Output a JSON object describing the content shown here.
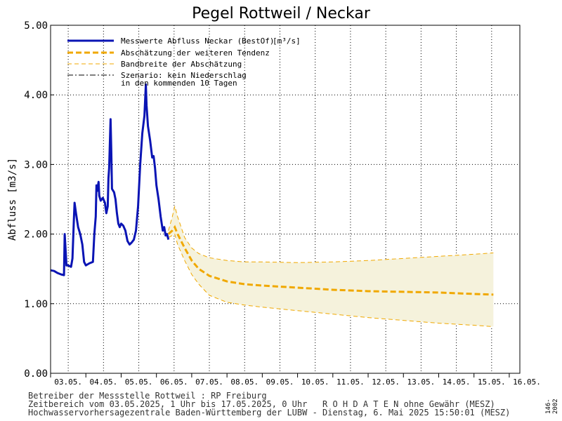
{
  "chart_data": {
    "type": "line",
    "title": "Pegel Rottweil / Neckar",
    "ylabel": "Abfluss [m3/s]",
    "ylim": [
      0,
      5
    ],
    "yticks": [
      "0.00",
      "1.00",
      "2.00",
      "3.00",
      "4.00",
      "5.00"
    ],
    "x_categories": [
      "03.05.",
      "04.05.",
      "05.05.",
      "06.05.",
      "07.05.",
      "08.05.",
      "09.05.",
      "10.05.",
      "11.05.",
      "12.05.",
      "13.05.",
      "14.05.",
      "15.05.",
      "16.05."
    ],
    "xlim_days": [
      0,
      13.3
    ],
    "grid": true,
    "legend_position": "top-left",
    "legend": [
      {
        "label": "Messwerte Abfluss Neckar (BestOf)",
        "unit": "[m³/s]",
        "style": "solid-blue"
      },
      {
        "label": "Abschätzung der weiteren Tendenz",
        "style": "dashed-orange-thick"
      },
      {
        "label": "Bandbreite der Abschätzung",
        "style": "dashed-orange-thin"
      },
      {
        "label": "Szenario: kein Niederschlag",
        "label2": "in den kommenden 10 Tagen",
        "style": "dashdot-black"
      }
    ],
    "series": [
      {
        "name": "Messwerte Abfluss Neckar (BestOf)",
        "color": "#0a14b4",
        "points": [
          [
            0.0,
            1.48
          ],
          [
            0.1,
            1.47
          ],
          [
            0.2,
            1.44
          ],
          [
            0.3,
            1.42
          ],
          [
            0.38,
            1.41
          ],
          [
            0.4,
            2.0
          ],
          [
            0.45,
            1.55
          ],
          [
            0.5,
            1.55
          ],
          [
            0.58,
            1.53
          ],
          [
            0.62,
            1.65
          ],
          [
            0.66,
            2.2
          ],
          [
            0.68,
            2.45
          ],
          [
            0.72,
            2.3
          ],
          [
            0.78,
            2.1
          ],
          [
            0.84,
            2.0
          ],
          [
            0.9,
            1.85
          ],
          [
            0.95,
            1.6
          ],
          [
            1.0,
            1.55
          ],
          [
            1.1,
            1.58
          ],
          [
            1.2,
            1.6
          ],
          [
            1.24,
            2.0
          ],
          [
            1.28,
            2.25
          ],
          [
            1.3,
            2.7
          ],
          [
            1.32,
            2.62
          ],
          [
            1.36,
            2.75
          ],
          [
            1.38,
            2.55
          ],
          [
            1.42,
            2.48
          ],
          [
            1.48,
            2.52
          ],
          [
            1.54,
            2.45
          ],
          [
            1.58,
            2.3
          ],
          [
            1.62,
            2.4
          ],
          [
            1.64,
            2.8
          ],
          [
            1.66,
            2.95
          ],
          [
            1.7,
            3.65
          ],
          [
            1.72,
            3.2
          ],
          [
            1.74,
            2.65
          ],
          [
            1.8,
            2.6
          ],
          [
            1.84,
            2.5
          ],
          [
            1.88,
            2.3
          ],
          [
            1.92,
            2.15
          ],
          [
            1.96,
            2.1
          ],
          [
            2.0,
            2.15
          ],
          [
            2.06,
            2.12
          ],
          [
            2.12,
            2.05
          ],
          [
            2.18,
            1.9
          ],
          [
            2.24,
            1.85
          ],
          [
            2.3,
            1.88
          ],
          [
            2.36,
            1.92
          ],
          [
            2.42,
            2.05
          ],
          [
            2.48,
            2.4
          ],
          [
            2.54,
            3.0
          ],
          [
            2.6,
            3.45
          ],
          [
            2.66,
            3.7
          ],
          [
            2.7,
            4.15
          ],
          [
            2.72,
            3.85
          ],
          [
            2.76,
            3.55
          ],
          [
            2.82,
            3.35
          ],
          [
            2.88,
            3.1
          ],
          [
            2.92,
            3.12
          ],
          [
            2.96,
            2.95
          ],
          [
            3.0,
            2.7
          ],
          [
            3.06,
            2.5
          ],
          [
            3.12,
            2.25
          ],
          [
            3.18,
            2.05
          ],
          [
            3.22,
            2.1
          ],
          [
            3.26,
            1.98
          ],
          [
            3.3,
            2.0
          ],
          [
            3.34,
            1.92
          ]
        ]
      },
      {
        "name": "Abschätzung der weiteren Tendenz",
        "color": "#f0a800",
        "points": [
          [
            3.34,
            2.0
          ],
          [
            3.45,
            2.05
          ],
          [
            3.52,
            2.1
          ],
          [
            3.6,
            2.0
          ],
          [
            3.8,
            1.8
          ],
          [
            4.0,
            1.62
          ],
          [
            4.2,
            1.5
          ],
          [
            4.5,
            1.4
          ],
          [
            5.0,
            1.32
          ],
          [
            5.5,
            1.28
          ],
          [
            6.0,
            1.26
          ],
          [
            7.0,
            1.23
          ],
          [
            8.0,
            1.2
          ],
          [
            9.0,
            1.18
          ],
          [
            10.0,
            1.17
          ],
          [
            11.0,
            1.16
          ],
          [
            12.0,
            1.14
          ],
          [
            12.55,
            1.13
          ]
        ]
      }
    ],
    "band": {
      "name": "Bandbreite der Abschätzung",
      "color": "#f0a800",
      "fill": "#f5f2dc",
      "upper": [
        [
          3.34,
          2.05
        ],
        [
          3.45,
          2.25
        ],
        [
          3.52,
          2.4
        ],
        [
          3.6,
          2.25
        ],
        [
          3.8,
          1.95
        ],
        [
          4.0,
          1.8
        ],
        [
          4.2,
          1.72
        ],
        [
          4.5,
          1.66
        ],
        [
          5.0,
          1.62
        ],
        [
          5.5,
          1.6
        ],
        [
          6.0,
          1.6
        ],
        [
          7.0,
          1.59
        ],
        [
          8.0,
          1.6
        ],
        [
          9.0,
          1.62
        ],
        [
          10.0,
          1.65
        ],
        [
          11.0,
          1.68
        ],
        [
          12.0,
          1.71
        ],
        [
          12.55,
          1.73
        ]
      ],
      "lower": [
        [
          3.34,
          1.95
        ],
        [
          3.45,
          1.98
        ],
        [
          3.52,
          2.0
        ],
        [
          3.6,
          1.85
        ],
        [
          3.8,
          1.62
        ],
        [
          4.0,
          1.42
        ],
        [
          4.2,
          1.28
        ],
        [
          4.5,
          1.12
        ],
        [
          5.0,
          1.02
        ],
        [
          5.5,
          0.98
        ],
        [
          6.0,
          0.95
        ],
        [
          7.0,
          0.9
        ],
        [
          8.0,
          0.85
        ],
        [
          9.0,
          0.8
        ],
        [
          10.0,
          0.76
        ],
        [
          11.0,
          0.72
        ],
        [
          12.0,
          0.69
        ],
        [
          12.55,
          0.67
        ]
      ]
    }
  },
  "footer": {
    "line1": "Betreiber der Messstelle Rottweil : RP Freiburg",
    "line2": "Zeitbereich vom 03.05.2025, 1 Uhr bis 17.05.2025, 0 Uhr   R O H D A T E N ohne Gewähr (MESZ)",
    "line3": "Hochwasservorhersagezentrale Baden-Württemberg der LUBW - Dienstag, 6. Mai 2025 15:50:01 (MESZ)"
  },
  "side_id": "146-2002"
}
